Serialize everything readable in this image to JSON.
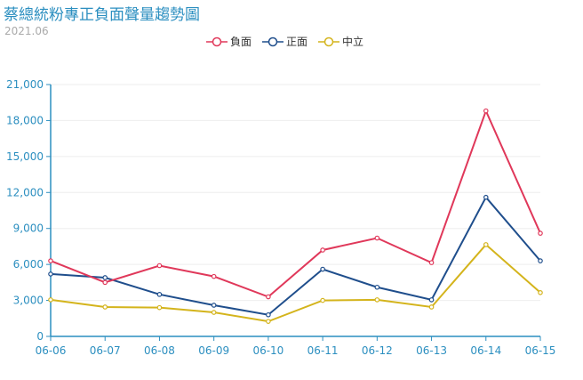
{
  "header": {
    "title": "蔡總統粉專正負面聲量趨勢圖",
    "subtitle": "2021.06"
  },
  "legend": {
    "items": [
      {
        "label": "負面",
        "color": "#e0385a"
      },
      {
        "label": "正面",
        "color": "#1f4e8c"
      },
      {
        "label": "中立",
        "color": "#d4b41c"
      }
    ]
  },
  "chart_data": {
    "type": "line",
    "title": "蔡總統粉專正負面聲量趨勢圖",
    "subtitle": "2021.06",
    "xlabel": "",
    "ylabel": "",
    "categories": [
      "06-06",
      "06-07",
      "06-08",
      "06-09",
      "06-10",
      "06-11",
      "06-12",
      "06-13",
      "06-14",
      "06-15"
    ],
    "series": [
      {
        "name": "負面",
        "color": "#e0385a",
        "values": [
          6300,
          4500,
          5900,
          5000,
          3300,
          7200,
          8200,
          6150,
          18800,
          8600
        ]
      },
      {
        "name": "正面",
        "color": "#1f4e8c",
        "values": [
          5200,
          4900,
          3500,
          2600,
          1800,
          5600,
          4100,
          3050,
          11600,
          6300
        ]
      },
      {
        "name": "中立",
        "color": "#d4b41c",
        "values": [
          3050,
          2450,
          2400,
          2000,
          1250,
          3000,
          3050,
          2450,
          7650,
          3650
        ]
      }
    ],
    "ylim": [
      0,
      21000
    ],
    "yticks": [
      0,
      3000,
      6000,
      9000,
      12000,
      15000,
      18000,
      21000
    ],
    "ytick_labels": [
      "0",
      "3,000",
      "6,000",
      "9,000",
      "12,000",
      "15,000",
      "18,000",
      "21,000"
    ],
    "grid": true,
    "legend_position": "top-center"
  }
}
